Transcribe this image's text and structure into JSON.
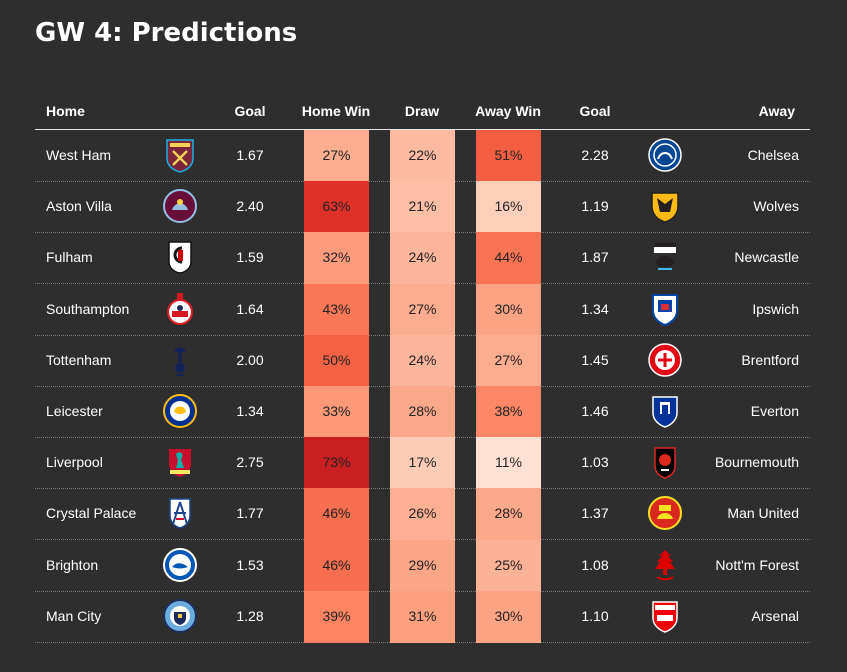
{
  "title": "GW 4: Predictions",
  "colors": {
    "background": "#2e2e2e",
    "text": "#ffffff",
    "scale_low": "#fff0e6",
    "scale_high": "#d42a25"
  },
  "chart_data": {
    "type": "table",
    "columns": [
      "Home",
      "Goal",
      "Home Win",
      "Draw",
      "Away Win",
      "Goal",
      "Away"
    ],
    "rows": [
      {
        "home": "West Ham",
        "home_goal": "1.67",
        "home_win": "27%",
        "draw": "22%",
        "away_win": "51%",
        "away_goal": "2.28",
        "away": "Chelsea",
        "home_icon": "west-ham-crest-icon",
        "away_icon": "chelsea-crest-icon",
        "hw": 27,
        "dr": 22,
        "aw": 51
      },
      {
        "home": "Aston Villa",
        "home_goal": "2.40",
        "home_win": "63%",
        "draw": "21%",
        "away_win": "16%",
        "away_goal": "1.19",
        "away": "Wolves",
        "home_icon": "aston-villa-crest-icon",
        "away_icon": "wolves-crest-icon",
        "hw": 63,
        "dr": 21,
        "aw": 16
      },
      {
        "home": "Fulham",
        "home_goal": "1.59",
        "home_win": "32%",
        "draw": "24%",
        "away_win": "44%",
        "away_goal": "1.87",
        "away": "Newcastle",
        "home_icon": "fulham-crest-icon",
        "away_icon": "newcastle-crest-icon",
        "hw": 32,
        "dr": 24,
        "aw": 44
      },
      {
        "home": "Southampton",
        "home_goal": "1.64",
        "home_win": "43%",
        "draw": "27%",
        "away_win": "30%",
        "away_goal": "1.34",
        "away": "Ipswich",
        "home_icon": "southampton-crest-icon",
        "away_icon": "ipswich-crest-icon",
        "hw": 43,
        "dr": 27,
        "aw": 30
      },
      {
        "home": "Tottenham",
        "home_goal": "2.00",
        "home_win": "50%",
        "draw": "24%",
        "away_win": "27%",
        "away_goal": "1.45",
        "away": "Brentford",
        "home_icon": "tottenham-crest-icon",
        "away_icon": "brentford-crest-icon",
        "hw": 50,
        "dr": 24,
        "aw": 27
      },
      {
        "home": "Leicester",
        "home_goal": "1.34",
        "home_win": "33%",
        "draw": "28%",
        "away_win": "38%",
        "away_goal": "1.46",
        "away": "Everton",
        "home_icon": "leicester-crest-icon",
        "away_icon": "everton-crest-icon",
        "hw": 33,
        "dr": 28,
        "aw": 38
      },
      {
        "home": "Liverpool",
        "home_goal": "2.75",
        "home_win": "73%",
        "draw": "17%",
        "away_win": "11%",
        "away_goal": "1.03",
        "away": "Bournemouth",
        "home_icon": "liverpool-crest-icon",
        "away_icon": "bournemouth-crest-icon",
        "hw": 73,
        "dr": 17,
        "aw": 11
      },
      {
        "home": "Crystal Palace",
        "home_goal": "1.77",
        "home_win": "46%",
        "draw": "26%",
        "away_win": "28%",
        "away_goal": "1.37",
        "away": "Man United",
        "home_icon": "crystal-palace-crest-icon",
        "away_icon": "man-united-crest-icon",
        "hw": 46,
        "dr": 26,
        "aw": 28
      },
      {
        "home": "Brighton",
        "home_goal": "1.53",
        "home_win": "46%",
        "draw": "29%",
        "away_win": "25%",
        "away_goal": "1.08",
        "away": "Nott'm Forest",
        "home_icon": "brighton-crest-icon",
        "away_icon": "nottm-forest-crest-icon",
        "hw": 46,
        "dr": 29,
        "aw": 25
      },
      {
        "home": "Man City",
        "home_goal": "1.28",
        "home_win": "39%",
        "draw": "31%",
        "away_win": "30%",
        "away_goal": "1.10",
        "away": "Arsenal",
        "home_icon": "man-city-crest-icon",
        "away_icon": "arsenal-crest-icon",
        "hw": 39,
        "dr": 31,
        "aw": 30
      }
    ]
  }
}
